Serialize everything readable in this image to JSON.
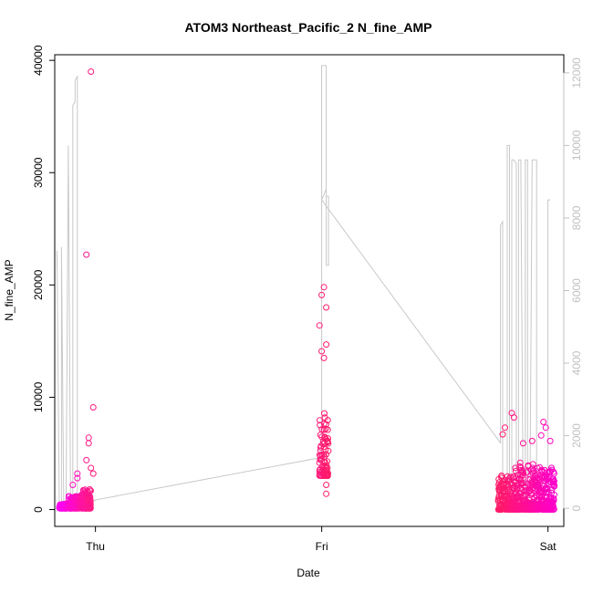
{
  "chart_data": {
    "type": "scatter",
    "title": "ATOM3 Northeast_Pacific_2 N_fine_AMP",
    "xlabel": "Date",
    "ylabel": "N_fine_AMP",
    "x_tick_labels": [
      "Thu",
      "Fri",
      "Sat"
    ],
    "x_tick_positions": [
      0,
      1,
      2
    ],
    "xlim": [
      -0.18,
      2.07
    ],
    "ylim": [
      -1500,
      40500
    ],
    "y_ticks": [
      0,
      10000,
      20000,
      30000,
      40000
    ],
    "y2lim": [
      -500,
      12500
    ],
    "y2_ticks": [
      0,
      2000,
      4000,
      6000,
      8000,
      10000,
      12000
    ],
    "grid": false,
    "colors": {
      "points_magenta": "#ff00cc",
      "points_pink": "#ff1a66",
      "altitude_line": "#c8c8c8",
      "axis": "#000000",
      "right_axis": "#c0c0c0"
    },
    "series": [
      {
        "kind": "scatter",
        "segments": [
          {
            "x0": -0.17,
            "x1": -0.02,
            "color_from": "#ff00ff",
            "color_to": "#ff1a80",
            "base": [
              100,
              900
            ],
            "clusters": [
              [
                -0.16,
                -0.12,
                500
              ],
              [
                -0.12,
                -0.07,
                1200
              ],
              [
                -0.07,
                -0.02,
                1800
              ]
            ],
            "outliers": [
              [
                -0.04,
                22700
              ],
              [
                -0.02,
                39000
              ],
              [
                -0.01,
                9100
              ],
              [
                -0.03,
                6400
              ],
              [
                -0.03,
                5900
              ],
              [
                -0.04,
                4400
              ],
              [
                -0.02,
                3700
              ],
              [
                -0.01,
                3200
              ],
              [
                -0.08,
                3200
              ],
              [
                -0.08,
                2800
              ],
              [
                -0.1,
                2200
              ]
            ]
          },
          {
            "x0": 0.98,
            "x1": 1.03,
            "color_from": "#ff1a80",
            "color_to": "#ff1a66",
            "base": [
              3000,
              12500
            ],
            "clusters": [
              [
                0.99,
                1.03,
                9000
              ]
            ],
            "outliers": [
              [
                1.01,
                19800
              ],
              [
                1.0,
                19100
              ],
              [
                1.02,
                18000
              ],
              [
                0.99,
                16400
              ],
              [
                1.0,
                14100
              ],
              [
                1.02,
                14700
              ],
              [
                1.01,
                13500
              ],
              [
                1.02,
                2200
              ],
              [
                1.02,
                1400
              ]
            ]
          },
          {
            "x0": 1.78,
            "x1": 2.03,
            "color_from": "#ff1a66",
            "color_to": "#ff00cc",
            "base": [
              0,
              2800
            ],
            "clusters": [
              [
                1.78,
                1.85,
                3200
              ],
              [
                1.85,
                1.95,
                4200
              ],
              [
                1.95,
                2.03,
                3800
              ]
            ],
            "outliers": [
              [
                1.84,
                8600
              ],
              [
                1.85,
                8200
              ],
              [
                1.93,
                6100
              ],
              [
                1.98,
                7800
              ],
              [
                1.99,
                7300
              ],
              [
                1.97,
                6600
              ],
              [
                1.81,
                7300
              ],
              [
                1.8,
                6700
              ],
              [
                1.89,
                5900
              ],
              [
                2.01,
                6100
              ]
            ]
          }
        ]
      },
      {
        "kind": "line",
        "axis": "right",
        "x": [
          -0.17,
          -0.17,
          -0.16,
          -0.16,
          -0.15,
          -0.15,
          -0.15,
          -0.14,
          -0.14,
          -0.13,
          -0.12,
          -0.12,
          -0.11,
          -0.11,
          -0.1,
          -0.1,
          -0.09,
          -0.09,
          -0.08,
          -0.08,
          -0.07,
          -0.06,
          -0.06,
          -0.05,
          -0.05,
          -0.04,
          -0.04,
          -0.04,
          0.0,
          0.0,
          1.0,
          1.0,
          1.0,
          1.02,
          1.02,
          1.02,
          1.02,
          1.03,
          1.03,
          1.02,
          1.02,
          1.0,
          1.79,
          1.79,
          1.8,
          1.8,
          1.81,
          1.82,
          1.82,
          1.83,
          1.83,
          1.84,
          1.84,
          1.85,
          1.86,
          1.86,
          1.87,
          1.87,
          1.88,
          1.88,
          1.89,
          1.9,
          1.9,
          1.91,
          1.91,
          1.92,
          1.92,
          1.93,
          1.94,
          1.94,
          1.95,
          1.95,
          1.96,
          1.97,
          1.98,
          1.98,
          1.99,
          2.0,
          2.0,
          2.0,
          2.01,
          2.01
        ],
        "y": [
          6600,
          7100,
          0,
          200,
          0,
          7200,
          7100,
          0,
          200,
          0,
          10000,
          9800,
          0,
          300,
          0,
          11100,
          11200,
          11800,
          11900,
          300,
          200,
          100,
          200,
          200,
          300,
          300,
          200,
          220,
          220,
          230,
          1400,
          1400,
          12200,
          12200,
          8800,
          8800,
          8600,
          8600,
          6700,
          6700,
          8800,
          8500,
          1800,
          7800,
          7900,
          0,
          200,
          200,
          10000,
          10000,
          200,
          0,
          9600,
          9600,
          9500,
          0,
          0,
          9600,
          9600,
          9500,
          0,
          0,
          9600,
          9600,
          0,
          200,
          0,
          9600,
          9600,
          9600,
          9600,
          200,
          100,
          0,
          100,
          0,
          0,
          0,
          100,
          8500,
          8500,
          8500
        ]
      }
    ]
  }
}
